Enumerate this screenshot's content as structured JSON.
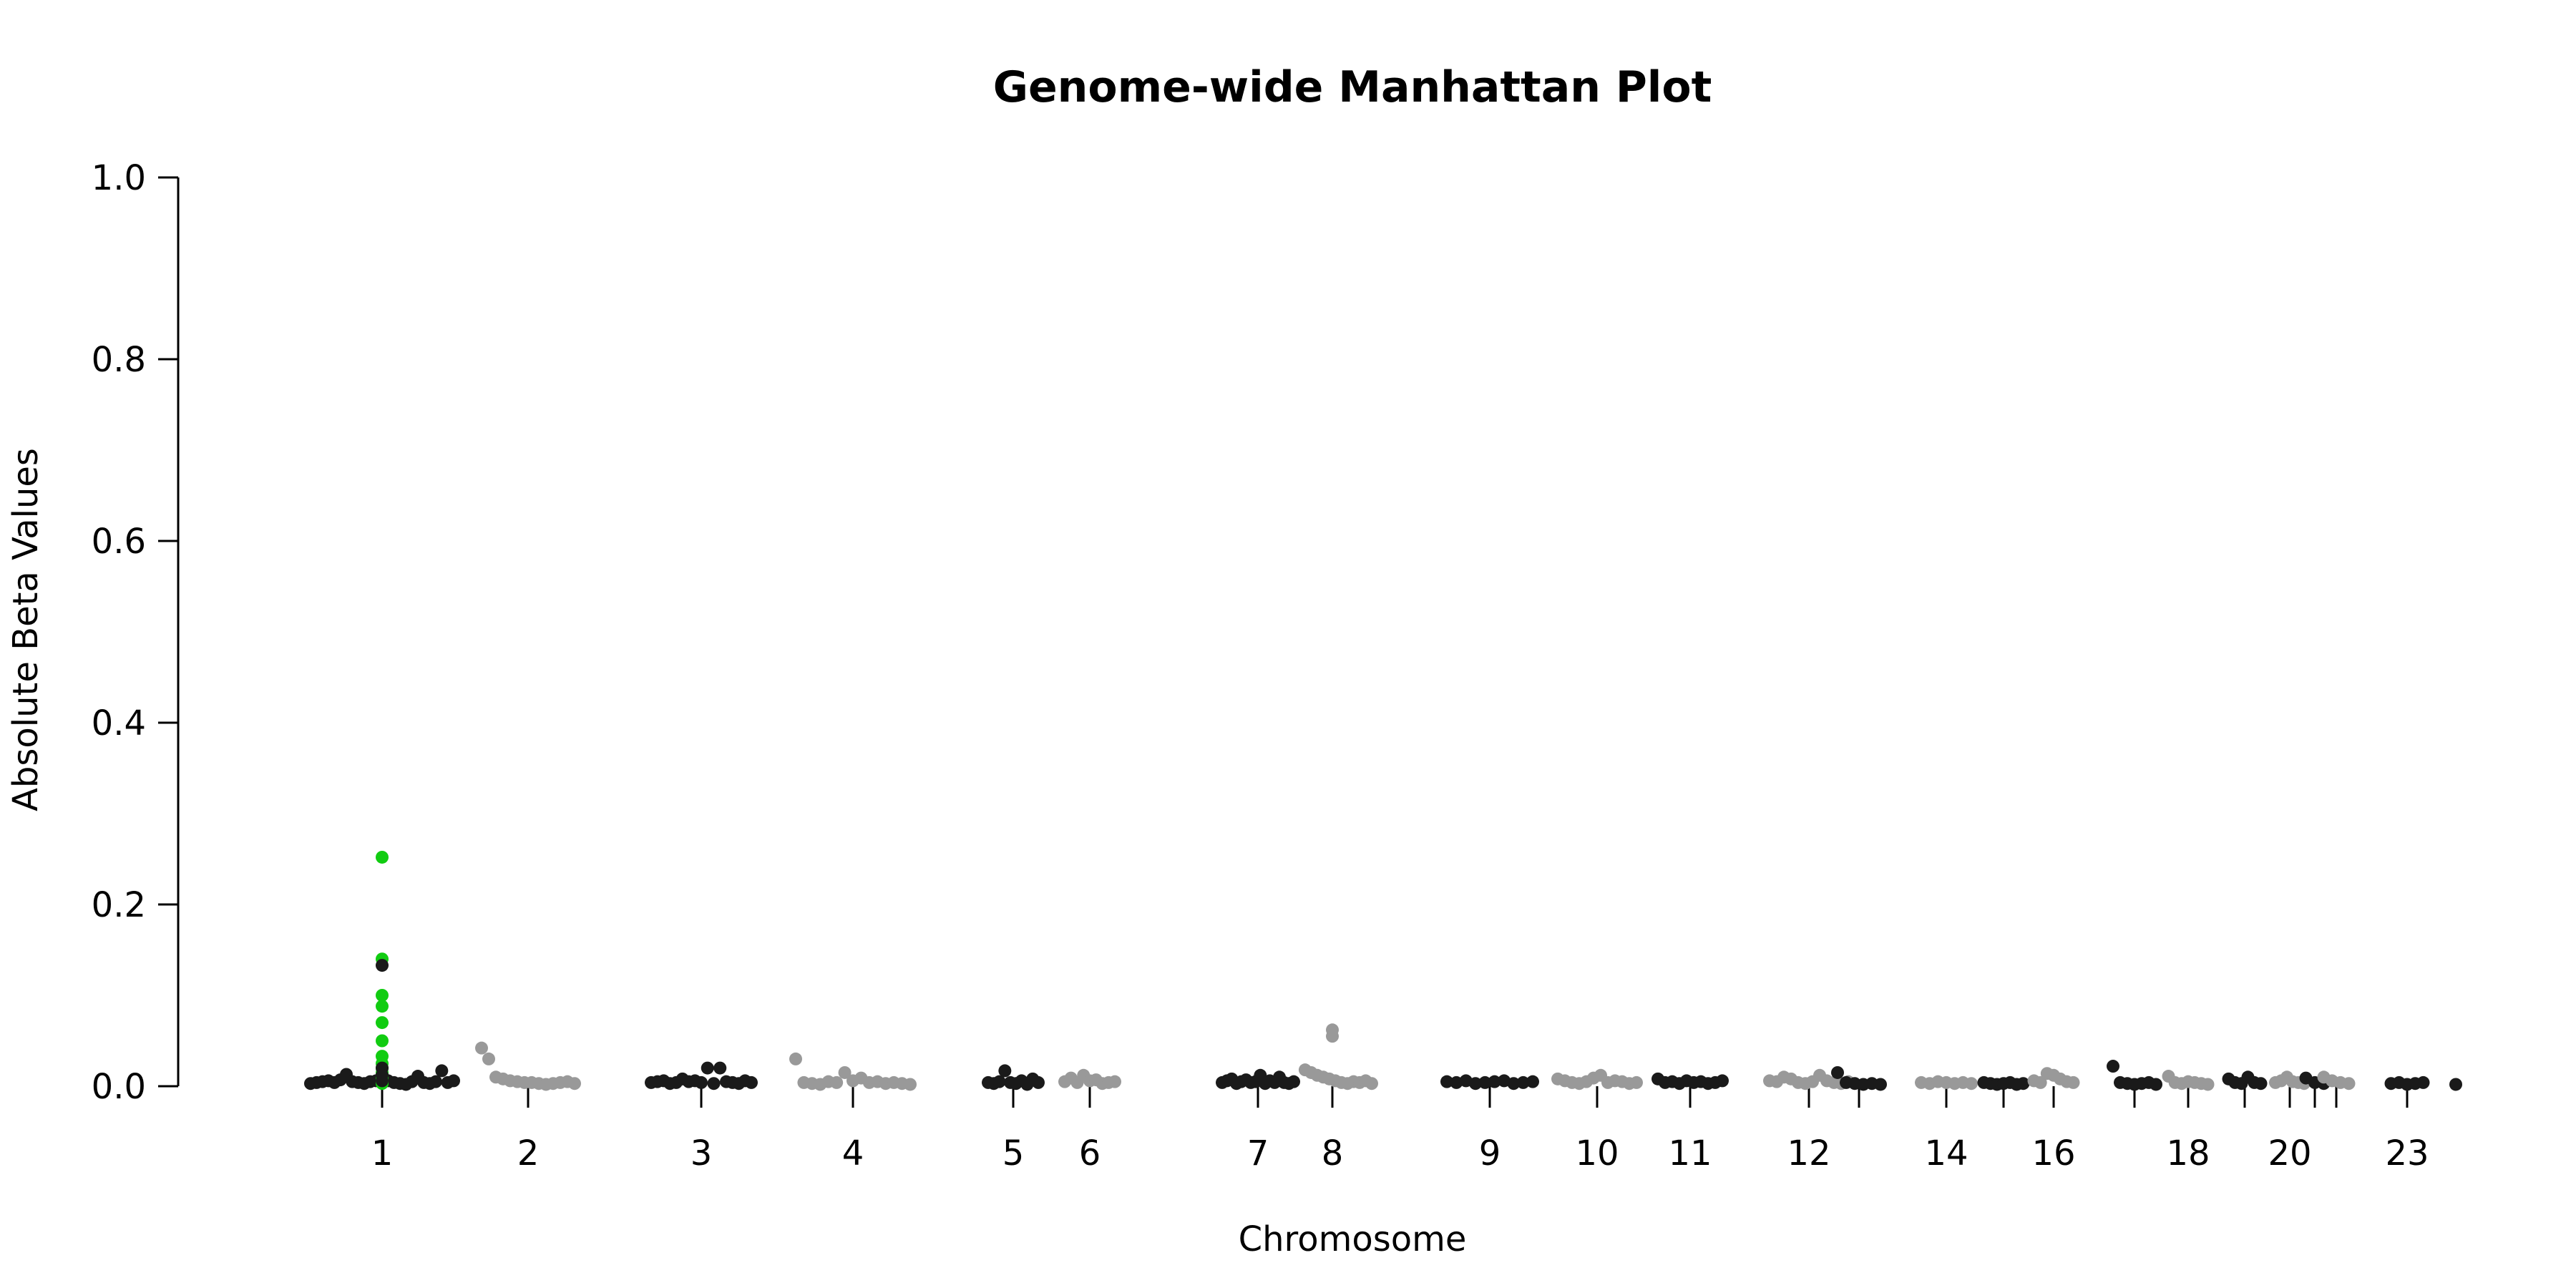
{
  "chart_data": {
    "type": "scatter",
    "title": "Genome-wide Manhattan Plot",
    "xlabel": "Chromosome",
    "ylabel": "Absolute Beta Values",
    "ylim": [
      0,
      1
    ],
    "y_ticks": [
      "0.0",
      "0.2",
      "0.4",
      "0.6",
      "0.8",
      "1.0"
    ],
    "x_tick_labels": [
      "1",
      "2",
      "3",
      "4",
      "5",
      "6",
      "7",
      "8",
      "9",
      "10",
      "11",
      "12",
      "14",
      "16",
      "18",
      "20",
      "23"
    ],
    "x_tick_chromosomes": [
      1,
      2,
      3,
      4,
      5,
      6,
      7,
      8,
      9,
      10,
      11,
      12,
      13,
      14,
      15,
      16,
      17,
      18,
      19,
      20,
      21,
      22,
      23
    ],
    "grid": false,
    "legend": "none",
    "colors": {
      "even": "#1a1a1a",
      "odd": "#999999",
      "highlight": "#11cc11"
    },
    "series": [
      {
        "chromosome": 1,
        "color": "black",
        "values": [
          0.003,
          0.004,
          0.005,
          0.006,
          0.004,
          0.007,
          0.013,
          0.005,
          0.004,
          0.003,
          0.005,
          0.006,
          0.013,
          0.006,
          0.004,
          0.003,
          0.002,
          0.005,
          0.011,
          0.004,
          0.003,
          0.005,
          0.017,
          0.004,
          0.006
        ]
      },
      {
        "chromosome": 1,
        "color": "green",
        "values": [
          0.252,
          0.14,
          0.1,
          0.088,
          0.07,
          0.05,
          0.033,
          0.025,
          0.02,
          0.015,
          0.01,
          0.008,
          0.005,
          0.003
        ]
      },
      {
        "chromosome": 1,
        "color": "black",
        "values": [
          0.133,
          0.02,
          0.012,
          0.006
        ]
      },
      {
        "chromosome": 2,
        "color": "gray",
        "values": [
          0.042,
          0.03,
          0.01,
          0.008,
          0.006,
          0.005,
          0.004,
          0.004,
          0.003,
          0.002,
          0.003,
          0.004,
          0.005,
          0.003
        ]
      },
      {
        "chromosome": 3,
        "color": "black",
        "values": [
          0.004,
          0.005,
          0.006,
          0.003,
          0.004,
          0.008,
          0.005,
          0.006,
          0.004,
          0.02,
          0.003,
          0.02,
          0.005,
          0.004,
          0.003,
          0.006,
          0.004
        ]
      },
      {
        "chromosome": 4,
        "color": "gray",
        "values": [
          0.03,
          0.004,
          0.003,
          0.002,
          0.005,
          0.004,
          0.015,
          0.006,
          0.009,
          0.004,
          0.005,
          0.003,
          0.004,
          0.003,
          0.002
        ]
      },
      {
        "chromosome": 5,
        "color": "black",
        "values": [
          0.004,
          0.003,
          0.005,
          0.017,
          0.004,
          0.003,
          0.006,
          0.002,
          0.008,
          0.004
        ]
      },
      {
        "chromosome": 6,
        "color": "gray",
        "values": [
          0.005,
          0.009,
          0.004,
          0.012,
          0.006,
          0.007,
          0.003,
          0.004,
          0.005
        ]
      },
      {
        "chromosome": 7,
        "color": "black",
        "values": [
          0.004,
          0.006,
          0.008,
          0.003,
          0.005,
          0.007,
          0.004,
          0.005,
          0.012,
          0.003,
          0.006,
          0.004,
          0.01,
          0.004,
          0.003,
          0.005
        ]
      },
      {
        "chromosome": 8,
        "color": "gray",
        "values": [
          0.062,
          0.055,
          0.018,
          0.015,
          0.012,
          0.01,
          0.008,
          0.006,
          0.004,
          0.003,
          0.005,
          0.004,
          0.006,
          0.003
        ]
      },
      {
        "chromosome": 9,
        "color": "black",
        "values": [
          0.005,
          0.004,
          0.006,
          0.003,
          0.004,
          0.005,
          0.006,
          0.003,
          0.004,
          0.005
        ]
      },
      {
        "chromosome": 10,
        "color": "gray",
        "values": [
          0.008,
          0.006,
          0.004,
          0.003,
          0.005,
          0.009,
          0.012,
          0.004,
          0.006,
          0.005,
          0.003,
          0.004
        ]
      },
      {
        "chromosome": 11,
        "color": "black",
        "values": [
          0.008,
          0.004,
          0.005,
          0.003,
          0.006,
          0.004,
          0.005,
          0.003,
          0.004,
          0.006
        ]
      },
      {
        "chromosome": 12,
        "color": "gray",
        "values": [
          0.006,
          0.005,
          0.01,
          0.008,
          0.004,
          0.003,
          0.005,
          0.012,
          0.006,
          0.004,
          0.003,
          0.005
        ]
      },
      {
        "chromosome": 13,
        "color": "black",
        "values": [
          0.015,
          0.004,
          0.003,
          0.002,
          0.003,
          0.002
        ]
      },
      {
        "chromosome": 14,
        "color": "gray",
        "values": [
          0.004,
          0.003,
          0.005,
          0.004,
          0.003,
          0.004,
          0.003
        ]
      },
      {
        "chromosome": 15,
        "color": "black",
        "values": [
          0.004,
          0.003,
          0.002,
          0.003,
          0.004,
          0.002,
          0.003
        ]
      },
      {
        "chromosome": 16,
        "color": "gray",
        "values": [
          0.006,
          0.004,
          0.014,
          0.012,
          0.008,
          0.005,
          0.004
        ]
      },
      {
        "chromosome": 17,
        "color": "black",
        "values": [
          0.022,
          0.004,
          0.003,
          0.002,
          0.003,
          0.004,
          0.002
        ]
      },
      {
        "chromosome": 18,
        "color": "gray",
        "values": [
          0.011,
          0.004,
          0.003,
          0.005,
          0.004,
          0.003,
          0.002
        ]
      },
      {
        "chromosome": 19,
        "color": "black",
        "values": [
          0.008,
          0.004,
          0.003,
          0.01,
          0.004,
          0.003
        ]
      },
      {
        "chromosome": 20,
        "color": "gray",
        "values": [
          0.004,
          0.006,
          0.01,
          0.005,
          0.004,
          0.003
        ]
      },
      {
        "chromosome": 21,
        "color": "black",
        "values": [
          0.009,
          0.004,
          0.003
        ]
      },
      {
        "chromosome": 22,
        "color": "gray",
        "values": [
          0.01,
          0.006,
          0.004,
          0.003
        ]
      },
      {
        "chromosome": 23,
        "color": "black",
        "values": [
          0.003,
          0.004,
          0.002,
          0.003,
          0.004
        ]
      },
      {
        "chromosome": 24,
        "color": "black",
        "values": [
          0.002
        ]
      }
    ]
  }
}
